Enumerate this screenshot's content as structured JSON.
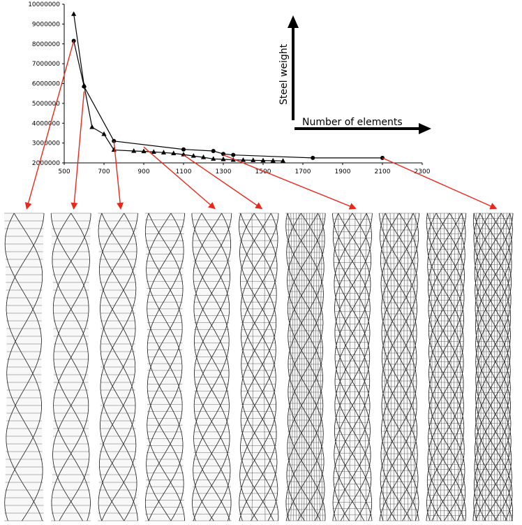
{
  "chart_data": {
    "type": "line",
    "title": "",
    "xlabel": "Number of elements",
    "ylabel": "Steel weight",
    "xlim": [
      500,
      2300
    ],
    "ylim": [
      2000000,
      10000000
    ],
    "x_ticks": [
      500,
      700,
      900,
      1100,
      1300,
      1500,
      1700,
      1900,
      2100,
      2300
    ],
    "y_ticks": [
      2000000,
      3000000,
      4000000,
      5000000,
      6000000,
      7000000,
      8000000,
      9000000,
      10000000
    ],
    "x_tick_labels": [
      "500",
      "700",
      "900",
      "1100",
      "1300",
      "1500",
      "1700",
      "1900",
      "2100",
      "2300"
    ],
    "y_tick_labels": [
      "2000000",
      "3000000",
      "4000000",
      "5000000",
      "6000000",
      "7000000",
      "8000000",
      "9000000",
      "10000000"
    ],
    "grid": false,
    "legend": "none",
    "series": [
      {
        "marker": "circle",
        "x": [
          548,
          600,
          750,
          1100,
          1250,
          1300,
          1350,
          1750,
          2100
        ],
        "y": [
          8150000,
          5850000,
          3100000,
          2680000,
          2600000,
          2450000,
          2400000,
          2250000,
          2250000
        ]
      },
      {
        "marker": "triangle",
        "x": [
          548,
          600,
          640,
          700,
          750,
          850,
          900,
          950,
          1000,
          1050,
          1100,
          1150,
          1200,
          1250,
          1300,
          1350,
          1400,
          1450,
          1500,
          1550,
          1600
        ],
        "y": [
          9500000,
          5900000,
          3800000,
          3450000,
          2650000,
          2600000,
          2580000,
          2550000,
          2520000,
          2480000,
          2420000,
          2350000,
          2280000,
          2200000,
          2180000,
          2150000,
          2140000,
          2130000,
          2120000,
          2110000,
          2100000
        ]
      }
    ]
  },
  "colors": {
    "line": "#000000",
    "arrow": "#e8281a",
    "tower_line": "#2a2a2a"
  },
  "towers": [
    {
      "diagonals": 3,
      "rings": 40,
      "verticals": 0
    },
    {
      "diagonals": 4,
      "rings": 40,
      "verticals": 0
    },
    {
      "diagonals": 5,
      "rings": 40,
      "verticals": 0
    },
    {
      "diagonals": 5,
      "rings": 45,
      "verticals": 0
    },
    {
      "diagonals": 6,
      "rings": 45,
      "verticals": 0
    },
    {
      "diagonals": 7,
      "rings": 45,
      "verticals": 2
    },
    {
      "diagonals": 7,
      "rings": 55,
      "verticals": 14
    },
    {
      "diagonals": 8,
      "rings": 50,
      "verticals": 6
    },
    {
      "diagonals": 8,
      "rings": 55,
      "verticals": 10
    },
    {
      "diagonals": 9,
      "rings": 60,
      "verticals": 10
    },
    {
      "diagonals": 11,
      "rings": 60,
      "verticals": 12
    }
  ],
  "arrows": [
    {
      "from_x": 548,
      "from_y": 8150000,
      "tower": 0
    },
    {
      "from_x": 600,
      "from_y": 5600000,
      "tower": 1
    },
    {
      "from_x": 750,
      "from_y": 3100000,
      "tower": 2
    },
    {
      "from_x": 900,
      "from_y": 2800000,
      "tower": 4
    },
    {
      "from_x": 1100,
      "from_y": 2400000,
      "tower": 5
    },
    {
      "from_x": 1300,
      "from_y": 2400000,
      "tower": 7
    },
    {
      "from_x": 2100,
      "from_y": 2250000,
      "tower": 10
    }
  ]
}
